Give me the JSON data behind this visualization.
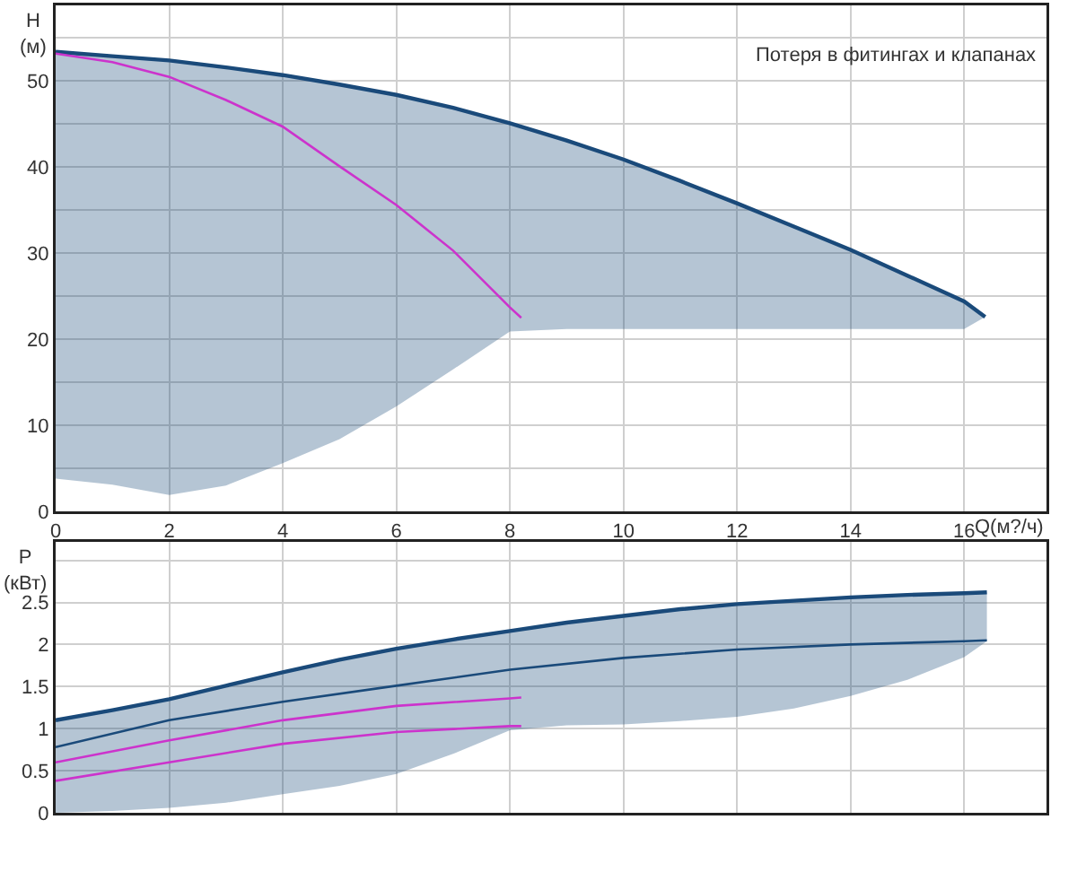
{
  "chart_data": [
    {
      "type": "line",
      "xlabel": "Q(м?/ч)",
      "ylabel": "H (м)",
      "xlim": [
        0,
        17.45
      ],
      "ylim": [
        0,
        58.8
      ],
      "xticks": [
        0,
        2,
        4,
        6,
        8,
        10,
        12,
        14,
        16
      ],
      "yticks": [
        0,
        {
          "value": 5,
          "label": null
        },
        10,
        {
          "value": 15,
          "label": null
        },
        20,
        {
          "value": 25,
          "label": null
        },
        30,
        {
          "value": 35,
          "label": null
        },
        40,
        {
          "value": 45,
          "label": null
        },
        50,
        {
          "value": 55,
          "label": null
        }
      ],
      "grid": true,
      "annotations": [
        "Потеря в фитингах и клапанах"
      ],
      "series": [
        {
          "color": "#1a4a7a",
          "x": [
            0,
            1,
            2,
            3,
            4,
            5,
            6,
            7,
            8,
            9,
            10,
            11,
            12,
            13,
            14,
            15,
            16,
            16.37
          ],
          "values": [
            53.4,
            52.9,
            52.4,
            51.6,
            50.7,
            49.6,
            48.4,
            46.9,
            45.1,
            43.1,
            40.9,
            38.4,
            35.8,
            33.1,
            30.4,
            27.4,
            24.4,
            22.6
          ],
          "upper": [
            53.4,
            52.9,
            52.4,
            51.6,
            50.7,
            49.6,
            48.4,
            46.9,
            45.1,
            43.1,
            40.9,
            38.4,
            35.8,
            33.1,
            30.4,
            27.4,
            24.4,
            22.6
          ],
          "lower": [
            3.8,
            3.1,
            1.9,
            3.0,
            5.6,
            8.4,
            12.2,
            16.5,
            20.9,
            21.2,
            21.2,
            21.2,
            21.2,
            21.2,
            21.2,
            21.2,
            21.2,
            22.6
          ]
        },
        {
          "color": "#cc33cc",
          "x": [
            0,
            1,
            2,
            3,
            4,
            5,
            6,
            7,
            8,
            8.2
          ],
          "values": [
            53.2,
            52.2,
            50.5,
            47.8,
            44.7,
            40.1,
            35.6,
            30.3,
            23.7,
            22.5
          ]
        }
      ]
    },
    {
      "type": "line",
      "ylabel": "P (кВт)",
      "xlim": [
        0,
        17.45
      ],
      "ylim": [
        0,
        3.22
      ],
      "xticks": [
        0,
        2,
        4,
        6,
        8,
        10,
        12,
        14,
        16
      ],
      "yticks": [
        0,
        0.5,
        1,
        1.5,
        2,
        2.5,
        {
          "value": 3,
          "label": null
        }
      ],
      "grid": true,
      "tick_labels": "y",
      "series": [
        {
          "color": "#1a4a7a",
          "x": [
            0,
            1,
            2,
            3,
            4,
            5,
            6,
            7,
            8,
            9,
            10,
            11,
            12,
            13,
            14,
            15,
            16,
            16.4
          ],
          "values": [
            1.1,
            1.22,
            1.35,
            1.51,
            1.67,
            1.82,
            1.95,
            2.06,
            2.16,
            2.26,
            2.34,
            2.42,
            2.48,
            2.52,
            2.56,
            2.59,
            2.61,
            2.62
          ],
          "upper": [
            1.1,
            1.22,
            1.35,
            1.51,
            1.67,
            1.82,
            1.95,
            2.06,
            2.16,
            2.26,
            2.34,
            2.42,
            2.48,
            2.52,
            2.56,
            2.59,
            2.61,
            2.62
          ],
          "lower": [
            0,
            0.02,
            0.06,
            0.12,
            0.22,
            0.32,
            0.46,
            0.7,
            0.98,
            1.04,
            1.05,
            1.09,
            1.14,
            1.24,
            1.39,
            1.58,
            1.85,
            2.04
          ]
        },
        {
          "color": "#1a4a7a",
          "x": [
            0,
            2,
            4,
            6,
            8,
            10,
            12,
            14,
            16,
            16.4
          ],
          "values": [
            0.78,
            1.1,
            1.32,
            1.51,
            1.7,
            1.84,
            1.94,
            2.0,
            2.04,
            2.05
          ]
        },
        {
          "color": "#cc33cc",
          "x": [
            0,
            2,
            4,
            6,
            8,
            8.2
          ],
          "values": [
            0.6,
            0.86,
            1.1,
            1.27,
            1.36,
            1.37
          ]
        },
        {
          "color": "#cc33cc",
          "x": [
            0,
            2,
            4,
            6,
            8,
            8.2
          ],
          "values": [
            0.38,
            0.6,
            0.82,
            0.96,
            1.03,
            1.03
          ]
        }
      ]
    }
  ]
}
